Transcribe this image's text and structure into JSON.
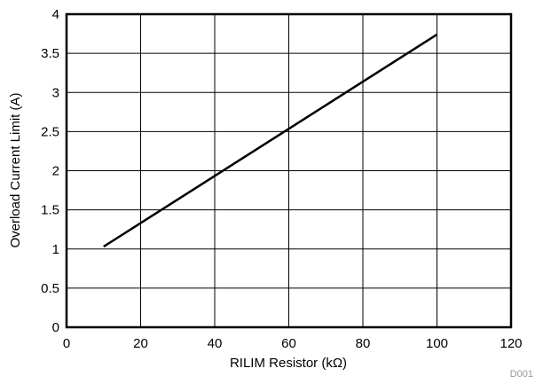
{
  "chart_data": {
    "type": "line",
    "title": "",
    "xlabel": "RILIM Resistor (kΩ)",
    "ylabel": "Overload Current Limit (A)",
    "xlim": [
      0,
      120
    ],
    "ylim": [
      0,
      4
    ],
    "x_ticks": [
      0,
      20,
      40,
      60,
      80,
      100,
      120
    ],
    "y_ticks": [
      0,
      0.5,
      1,
      1.5,
      2,
      2.5,
      3,
      3.5,
      4
    ],
    "x_tick_labels": [
      "0",
      "20",
      "40",
      "60",
      "80",
      "100",
      "120"
    ],
    "y_tick_labels": [
      "0",
      "0.5",
      "1",
      "1.5",
      "2",
      "2.5",
      "3",
      "3.5",
      "4"
    ],
    "grid": true,
    "line_color": "#000000",
    "series": [
      {
        "x": [
          10,
          100
        ],
        "y": [
          1.03,
          3.74
        ]
      }
    ]
  },
  "figure_id": "D001"
}
